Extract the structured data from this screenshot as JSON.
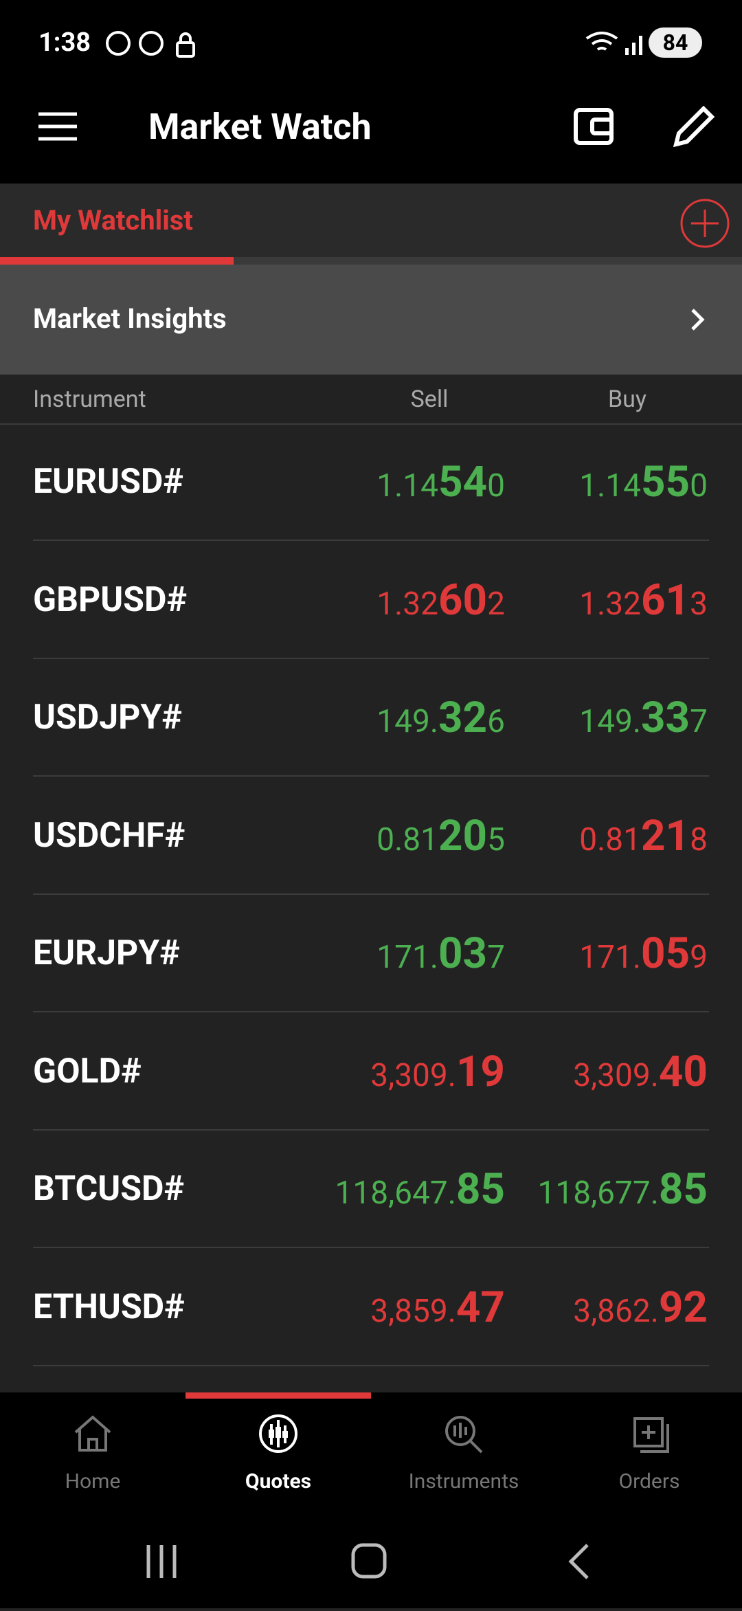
{
  "status_bar": {
    "time": "1:38",
    "battery": "84"
  },
  "header": {
    "title": "Market Watch"
  },
  "tabs": {
    "active": "My Watchlist"
  },
  "insights": {
    "label": "Market Insights"
  },
  "table": {
    "columns": [
      "Instrument",
      "Sell",
      "Buy"
    ],
    "up_color": "#4caf50",
    "down_color": "#e0393a",
    "rows": [
      {
        "symbol": "EURUSD#",
        "sell": {
          "pre": "1.14",
          "big": "54",
          "post": "0",
          "dir": "up"
        },
        "buy": {
          "pre": "1.14",
          "big": "55",
          "post": "0",
          "dir": "up"
        }
      },
      {
        "symbol": "GBPUSD#",
        "sell": {
          "pre": "1.32",
          "big": "60",
          "post": "2",
          "dir": "down"
        },
        "buy": {
          "pre": "1.32",
          "big": "61",
          "post": "3",
          "dir": "down"
        }
      },
      {
        "symbol": "USDJPY#",
        "sell": {
          "pre": "149.",
          "big": "32",
          "post": "6",
          "dir": "up"
        },
        "buy": {
          "pre": "149.",
          "big": "33",
          "post": "7",
          "dir": "up"
        }
      },
      {
        "symbol": "USDCHF#",
        "sell": {
          "pre": "0.81",
          "big": "20",
          "post": "5",
          "dir": "up"
        },
        "buy": {
          "pre": "0.81",
          "big": "21",
          "post": "8",
          "dir": "down"
        }
      },
      {
        "symbol": "EURJPY#",
        "sell": {
          "pre": "171.",
          "big": "03",
          "post": "7",
          "dir": "up"
        },
        "buy": {
          "pre": "171.",
          "big": "05",
          "post": "9",
          "dir": "down"
        }
      },
      {
        "symbol": "GOLD#",
        "sell": {
          "pre": "3,309.",
          "big": "19",
          "dir": "down"
        },
        "buy": {
          "pre": "3,309.",
          "big": "40",
          "dir": "down"
        }
      },
      {
        "symbol": "BTCUSD#",
        "sell": {
          "pre": "118,647.",
          "big": "85",
          "dir": "up"
        },
        "buy": {
          "pre": "118,677.",
          "big": "85",
          "dir": "up"
        }
      },
      {
        "symbol": "ETHUSD#",
        "sell": {
          "pre": "3,859.",
          "big": "47",
          "dir": "down"
        },
        "buy": {
          "pre": "3,862.",
          "big": "92",
          "dir": "down"
        }
      }
    ]
  },
  "bottom_nav": {
    "items": [
      "Home",
      "Quotes",
      "Instruments",
      "Orders"
    ],
    "active": 1
  }
}
